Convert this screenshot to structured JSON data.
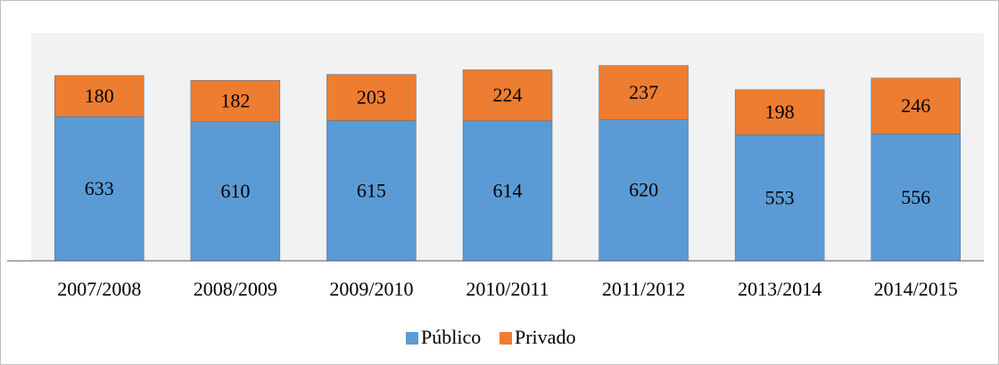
{
  "chart_data": {
    "type": "stacked_bar",
    "categories": [
      "2007/2008",
      "2008/2009",
      "2009/2010",
      "2010/2011",
      "2011/2012",
      "2013/2014",
      "2014/2015"
    ],
    "series": [
      {
        "name": "Público",
        "color": "#5b9bd5",
        "values": [
          633,
          610,
          615,
          614,
          620,
          553,
          556
        ]
      },
      {
        "name": "Privado",
        "color": "#ed7d31",
        "values": [
          180,
          182,
          203,
          224,
          237,
          198,
          246
        ]
      }
    ],
    "ylim": [
      0,
      1000
    ]
  }
}
